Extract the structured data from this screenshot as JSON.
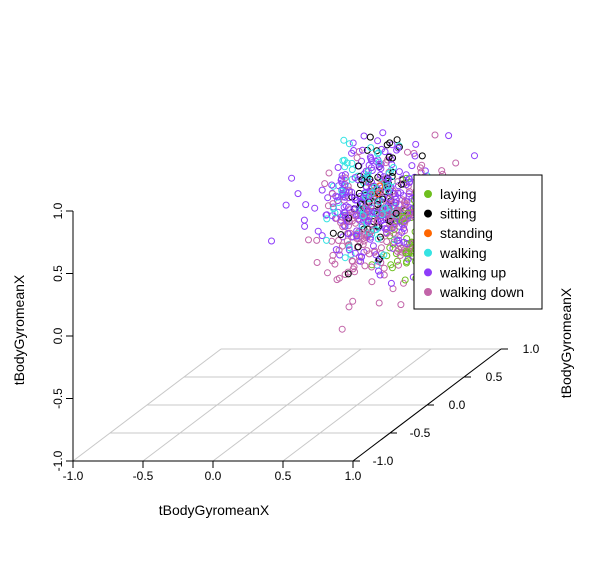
{
  "chart_data": {
    "type": "scatter",
    "title": "",
    "xlabel": "tBodyGyromeanX",
    "ylabel": "tBodyGyromeanX",
    "zlabel": "tBodyGyromeanX",
    "x_ticks": [
      "-1.0",
      "-0.5",
      "0.0",
      "0.5",
      "1.0"
    ],
    "y_ticks": [
      "-1.0",
      "-0.5",
      "0.0",
      "0.5",
      "1.0"
    ],
    "z_ticks": [
      "-1.0",
      "-0.5",
      "0.0",
      "0.5",
      "1.0"
    ],
    "xlim": [
      -1,
      1
    ],
    "ylim": [
      -1,
      1
    ],
    "zlim": [
      -1,
      1
    ],
    "grid": true,
    "legend_position": "top-right",
    "series": [
      {
        "name": "laying",
        "color": "#6fbf1f",
        "centroid": [
          0.62,
          0.1,
          0.62
        ],
        "spread": [
          0.1,
          0.2,
          0.12
        ],
        "count": 100
      },
      {
        "name": "sitting",
        "color": "#000000",
        "centroid": [
          0.4,
          0.5,
          0.5
        ],
        "spread": [
          0.07,
          0.25,
          0.2
        ],
        "count": 70
      },
      {
        "name": "standing",
        "color": "#ff6600",
        "centroid": [
          0.4,
          0.5,
          0.5
        ],
        "spread": [
          0.02,
          0.03,
          0.03
        ],
        "count": 3
      },
      {
        "name": "walking",
        "color": "#35e3e3",
        "centroid": [
          0.35,
          0.4,
          0.48
        ],
        "spread": [
          0.12,
          0.2,
          0.16
        ],
        "count": 90
      },
      {
        "name": "walking up",
        "color": "#8e3dfa",
        "centroid": [
          0.4,
          0.4,
          0.48
        ],
        "spread": [
          0.2,
          0.22,
          0.22
        ],
        "count": 260
      },
      {
        "name": "walking down",
        "color": "#c264a8",
        "centroid": [
          0.55,
          0.32,
          0.3
        ],
        "spread": [
          0.2,
          0.22,
          0.25
        ],
        "count": 240
      }
    ]
  }
}
